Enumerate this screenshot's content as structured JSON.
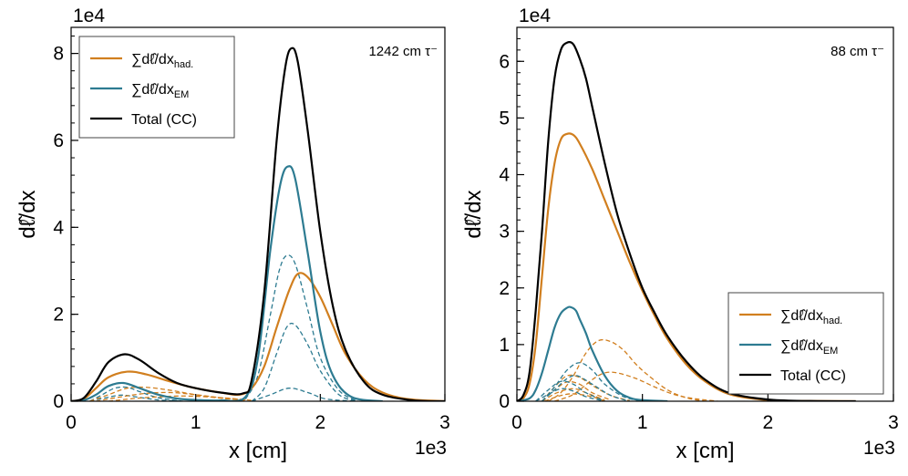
{
  "colors": {
    "had": "#d17f1f",
    "em": "#2d7b91",
    "total": "#000000"
  },
  "chart_data": [
    {
      "type": "line",
      "panel": "left",
      "annotation": "1242 cm τ⁻",
      "xlabel": "x [cm]",
      "ylabel": "dℓ̂/dx",
      "x_exponent": "1e3",
      "y_exponent": "1e4",
      "xlim": [
        0,
        3
      ],
      "ylim": [
        0,
        8.6
      ],
      "xticks": [
        0,
        1,
        2,
        3
      ],
      "xtick_labels": [
        "0",
        "1",
        "2",
        "3"
      ],
      "yticks": [
        0,
        2,
        4,
        6,
        8
      ],
      "ytick_labels": [
        "0",
        "2",
        "4",
        "6",
        "8"
      ],
      "y_minor_step": 0.4,
      "legend_position": "top-left",
      "legend": [
        {
          "key": "had",
          "main": "∑dℓ̂/dx",
          "sub": "had."
        },
        {
          "key": "em",
          "main": "∑dℓ̂/dx",
          "sub": "EM"
        },
        {
          "key": "total",
          "main": "Total (CC)",
          "sub": ""
        }
      ],
      "series": [
        {
          "name": "∑dℓ̂/dx had.",
          "key": "had",
          "style": "solid",
          "x": [
            0,
            0.1,
            0.2,
            0.3,
            0.45,
            0.6,
            0.8,
            1.0,
            1.2,
            1.35,
            1.45,
            1.55,
            1.65,
            1.75,
            1.82,
            1.9,
            2.0,
            2.1,
            2.2,
            2.35,
            2.5,
            2.7,
            3.0
          ],
          "values": [
            0,
            0.05,
            0.3,
            0.55,
            0.68,
            0.62,
            0.45,
            0.3,
            0.2,
            0.15,
            0.3,
            0.8,
            1.7,
            2.55,
            2.93,
            2.85,
            2.4,
            1.75,
            1.1,
            0.5,
            0.2,
            0.05,
            0
          ]
        },
        {
          "name": "∑dℓ̂/dx EM",
          "key": "em",
          "style": "solid",
          "x": [
            0,
            0.1,
            0.2,
            0.3,
            0.42,
            0.55,
            0.7,
            0.85,
            1.0,
            1.2,
            1.4,
            1.5,
            1.6,
            1.68,
            1.74,
            1.8,
            1.9,
            2.0,
            2.1,
            2.25,
            2.5
          ],
          "values": [
            0,
            0.02,
            0.15,
            0.35,
            0.42,
            0.3,
            0.15,
            0.06,
            0.03,
            0.02,
            0.1,
            1.0,
            3.5,
            5.0,
            5.4,
            5.1,
            3.4,
            1.6,
            0.6,
            0.1,
            0
          ]
        },
        {
          "name": "Total (CC)",
          "key": "total",
          "style": "solid",
          "x": [
            0,
            0.1,
            0.2,
            0.3,
            0.43,
            0.55,
            0.7,
            0.85,
            1.0,
            1.2,
            1.38,
            1.45,
            1.55,
            1.65,
            1.72,
            1.77,
            1.82,
            1.9,
            2.0,
            2.1,
            2.2,
            2.35,
            2.5,
            2.75,
            3.0
          ],
          "values": [
            0,
            0.07,
            0.45,
            0.9,
            1.08,
            0.95,
            0.65,
            0.42,
            0.3,
            0.2,
            0.18,
            0.5,
            2.5,
            6.0,
            7.7,
            8.12,
            7.8,
            6.2,
            3.9,
            2.2,
            1.2,
            0.45,
            0.15,
            0.02,
            0
          ]
        },
        {
          "name": "EM component 1",
          "key": "em",
          "style": "dashed",
          "x": [
            1.4,
            1.5,
            1.6,
            1.67,
            1.73,
            1.8,
            1.9,
            2.0,
            2.15,
            2.3
          ],
          "values": [
            0.05,
            0.6,
            2.0,
            3.0,
            3.35,
            3.15,
            2.1,
            1.0,
            0.25,
            0
          ]
        },
        {
          "name": "EM component 2",
          "key": "em",
          "style": "dashed",
          "x": [
            1.45,
            1.55,
            1.65,
            1.73,
            1.8,
            1.9,
            2.0,
            2.15,
            2.3
          ],
          "values": [
            0,
            0.3,
            1.1,
            1.7,
            1.75,
            1.3,
            0.7,
            0.15,
            0
          ]
        },
        {
          "name": "EM component 3",
          "key": "em",
          "style": "dashed",
          "x": [
            1.45,
            1.6,
            1.75,
            1.9,
            2.05,
            2.3
          ],
          "values": [
            0,
            0.15,
            0.3,
            0.2,
            0.05,
            0
          ]
        },
        {
          "name": "EM component 4",
          "key": "em",
          "style": "dashed",
          "x": [
            0.15,
            0.25,
            0.35,
            0.45,
            0.55,
            0.7,
            0.9
          ],
          "values": [
            0,
            0.15,
            0.3,
            0.32,
            0.22,
            0.08,
            0
          ]
        },
        {
          "name": "EM component 5",
          "key": "em",
          "style": "dashed",
          "x": [
            0.15,
            0.28,
            0.4,
            0.52,
            0.7,
            0.9
          ],
          "values": [
            0,
            0.08,
            0.14,
            0.1,
            0.03,
            0
          ]
        },
        {
          "name": "had. component 1",
          "key": "had",
          "style": "dashed",
          "x": [
            0.15,
            0.3,
            0.45,
            0.6,
            0.8,
            1.0,
            1.2,
            1.4
          ],
          "values": [
            0,
            0.15,
            0.3,
            0.32,
            0.25,
            0.15,
            0.07,
            0.02
          ]
        },
        {
          "name": "had. component 2",
          "key": "had",
          "style": "dashed",
          "x": [
            0.2,
            0.4,
            0.6,
            0.8,
            1.0,
            1.2,
            1.4
          ],
          "values": [
            0,
            0.1,
            0.18,
            0.2,
            0.15,
            0.08,
            0.03
          ]
        },
        {
          "name": "had. component 3",
          "key": "had",
          "style": "dashed",
          "x": [
            0.3,
            0.5,
            0.7,
            0.9,
            1.1,
            1.3,
            1.45
          ],
          "values": [
            0,
            0.06,
            0.1,
            0.12,
            0.1,
            0.06,
            0.02
          ]
        }
      ]
    },
    {
      "type": "line",
      "panel": "right",
      "annotation": "88 cm τ⁻",
      "xlabel": "x [cm]",
      "ylabel": "dℓ̂/dx",
      "x_exponent": "1e3",
      "y_exponent": "1e4",
      "xlim": [
        0,
        3
      ],
      "ylim": [
        0,
        6.6
      ],
      "xticks": [
        0,
        1,
        2,
        3
      ],
      "xtick_labels": [
        "0",
        "1",
        "2",
        "3"
      ],
      "yticks": [
        0,
        1,
        2,
        3,
        4,
        5,
        6
      ],
      "ytick_labels": [
        "0",
        "1",
        "2",
        "3",
        "4",
        "5",
        "6"
      ],
      "y_minor_step": 0.2,
      "legend_position": "bottom-right",
      "legend": [
        {
          "key": "had",
          "main": "∑dℓ̂/dx",
          "sub": "had."
        },
        {
          "key": "em",
          "main": "∑dℓ̂/dx",
          "sub": "EM"
        },
        {
          "key": "total",
          "main": "Total (CC)",
          "sub": ""
        }
      ],
      "series": [
        {
          "name": "∑dℓ̂/dx had.",
          "key": "had",
          "style": "solid",
          "x": [
            0,
            0.05,
            0.1,
            0.15,
            0.2,
            0.25,
            0.3,
            0.35,
            0.4,
            0.45,
            0.5,
            0.6,
            0.7,
            0.8,
            0.9,
            1.0,
            1.1,
            1.2,
            1.35,
            1.5,
            1.7,
            2.0,
            2.3,
            2.7
          ],
          "values": [
            0,
            0.05,
            0.3,
            1.0,
            2.2,
            3.4,
            4.2,
            4.62,
            4.72,
            4.7,
            4.55,
            4.1,
            3.55,
            3.0,
            2.45,
            1.95,
            1.5,
            1.1,
            0.65,
            0.35,
            0.12,
            0.02,
            0.005,
            0
          ]
        },
        {
          "name": "∑dℓ̂/dx EM",
          "key": "em",
          "style": "solid",
          "x": [
            0,
            0.1,
            0.15,
            0.2,
            0.25,
            0.3,
            0.35,
            0.4,
            0.43,
            0.47,
            0.5,
            0.55,
            0.6,
            0.7,
            0.8,
            0.9,
            1.0,
            1.2
          ],
          "values": [
            0,
            0.05,
            0.2,
            0.5,
            0.9,
            1.3,
            1.55,
            1.65,
            1.66,
            1.6,
            1.45,
            1.2,
            0.9,
            0.45,
            0.18,
            0.06,
            0.02,
            0
          ]
        },
        {
          "name": "Total (CC)",
          "key": "total",
          "style": "solid",
          "x": [
            0,
            0.05,
            0.1,
            0.15,
            0.2,
            0.25,
            0.3,
            0.35,
            0.4,
            0.45,
            0.5,
            0.55,
            0.6,
            0.7,
            0.8,
            0.9,
            1.0,
            1.1,
            1.2,
            1.35,
            1.5,
            1.7,
            2.0,
            2.3,
            2.7
          ],
          "values": [
            0,
            0.1,
            0.5,
            1.6,
            3.0,
            4.6,
            5.7,
            6.2,
            6.33,
            6.3,
            6.05,
            5.7,
            5.2,
            4.2,
            3.3,
            2.6,
            2.0,
            1.55,
            1.15,
            0.7,
            0.38,
            0.14,
            0.03,
            0.005,
            0
          ]
        },
        {
          "name": "had. component 1",
          "key": "had",
          "style": "dashed",
          "x": [
            0.25,
            0.35,
            0.45,
            0.55,
            0.65,
            0.75,
            0.85,
            0.95,
            1.05,
            1.2,
            1.35,
            1.5
          ],
          "values": [
            0,
            0.15,
            0.45,
            0.85,
            1.07,
            1.05,
            0.9,
            0.65,
            0.45,
            0.2,
            0.06,
            0
          ]
        },
        {
          "name": "had. component 2",
          "key": "had",
          "style": "dashed",
          "x": [
            0.3,
            0.45,
            0.6,
            0.7,
            0.8,
            0.95,
            1.1,
            1.25,
            1.4,
            1.6
          ],
          "values": [
            0,
            0.12,
            0.38,
            0.5,
            0.5,
            0.4,
            0.25,
            0.12,
            0.05,
            0
          ]
        },
        {
          "name": "had. component 3",
          "key": "had",
          "style": "dashed",
          "x": [
            0.2,
            0.3,
            0.4,
            0.5,
            0.6,
            0.75,
            0.9
          ],
          "values": [
            0,
            0.25,
            0.45,
            0.42,
            0.28,
            0.1,
            0.01
          ]
        },
        {
          "name": "had. component 4",
          "key": "had",
          "style": "dashed",
          "x": [
            0.2,
            0.3,
            0.4,
            0.5,
            0.6,
            0.75
          ],
          "values": [
            0,
            0.2,
            0.34,
            0.3,
            0.15,
            0.02
          ]
        },
        {
          "name": "had. component 5",
          "key": "had",
          "style": "dashed",
          "x": [
            0.2,
            0.32,
            0.45,
            0.55,
            0.7
          ],
          "values": [
            0,
            0.15,
            0.22,
            0.15,
            0.02
          ]
        },
        {
          "name": "had. component 6",
          "key": "had",
          "style": "dashed",
          "x": [
            0.22,
            0.35,
            0.45,
            0.6,
            0.7
          ],
          "values": [
            0,
            0.1,
            0.13,
            0.08,
            0
          ]
        },
        {
          "name": "EM component 1",
          "key": "em",
          "style": "dashed",
          "x": [
            0.2,
            0.3,
            0.4,
            0.5,
            0.6,
            0.7,
            0.85,
            1.0
          ],
          "values": [
            0,
            0.25,
            0.55,
            0.68,
            0.55,
            0.3,
            0.08,
            0
          ]
        },
        {
          "name": "EM component 2",
          "key": "em",
          "style": "dashed",
          "x": [
            0.2,
            0.3,
            0.4,
            0.48,
            0.6,
            0.75,
            0.9
          ],
          "values": [
            0,
            0.2,
            0.4,
            0.45,
            0.3,
            0.1,
            0
          ]
        },
        {
          "name": "EM component 3",
          "key": "em",
          "style": "dashed",
          "x": [
            0.15,
            0.25,
            0.35,
            0.45,
            0.55,
            0.7
          ],
          "values": [
            0,
            0.2,
            0.35,
            0.3,
            0.15,
            0
          ]
        },
        {
          "name": "EM component 4",
          "key": "em",
          "style": "dashed",
          "x": [
            0.15,
            0.25,
            0.35,
            0.45,
            0.55,
            0.7
          ],
          "values": [
            0,
            0.12,
            0.22,
            0.18,
            0.08,
            0
          ]
        }
      ]
    }
  ]
}
